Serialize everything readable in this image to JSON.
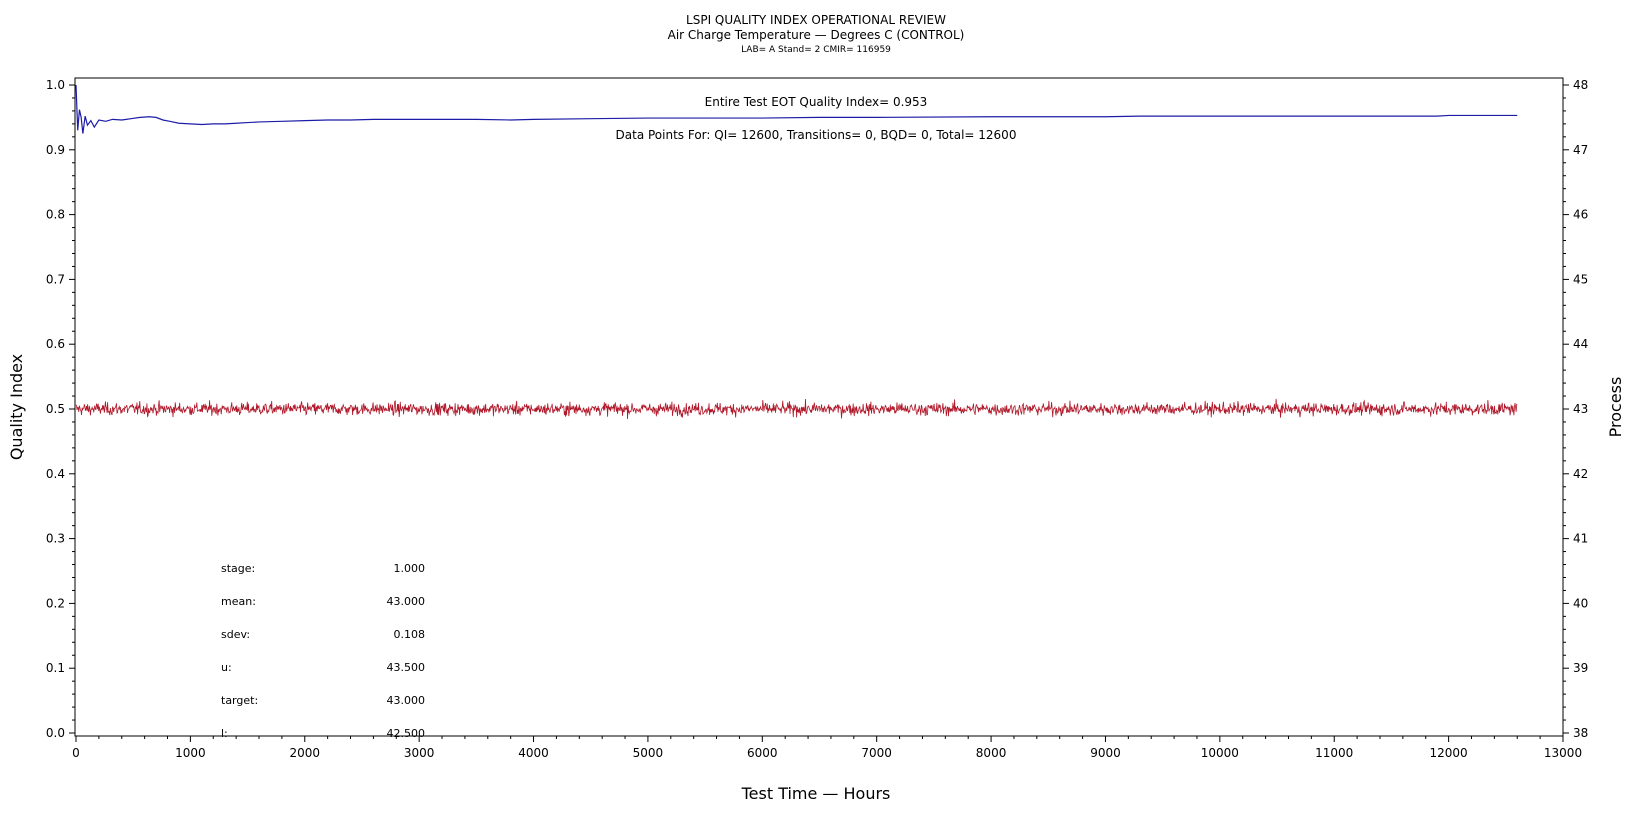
{
  "chart_data": {
    "type": "line",
    "title": "LSPI QUALITY INDEX OPERATIONAL REVIEW",
    "subtitle": "Air Charge Temperature — Degrees C (CONTROL)",
    "subtitle2": "LAB= A Stand= 2 CMIR= 116959",
    "xlabel": "Test Time — Hours",
    "ylabel": "Quality Index",
    "y2label": "Process",
    "xlim": [
      0,
      13000
    ],
    "ylim": [
      0,
      1.0
    ],
    "y2lim": [
      38,
      48
    ],
    "x_ticks": [
      "0",
      "1000",
      "2000",
      "3000",
      "4000",
      "5000",
      "6000",
      "7000",
      "8000",
      "9000",
      "10000",
      "11000",
      "12000",
      "13000"
    ],
    "y_ticks": [
      "0.0",
      "0.1",
      "0.2",
      "0.3",
      "0.4",
      "0.5",
      "0.6",
      "0.7",
      "0.8",
      "0.9",
      "1.0"
    ],
    "y2_ticks": [
      "38",
      "39",
      "40",
      "41",
      "42",
      "43",
      "44",
      "45",
      "46",
      "47",
      "48"
    ],
    "annotations": {
      "qi": "Entire Test EOT Quality Index=   0.953",
      "points": "Data Points For: QI= 12600, Transitions=      0, BQD=      0, Total= 12600"
    },
    "stats": [
      {
        "label": "stage:",
        "value": "1.000"
      },
      {
        "label": "mean:",
        "value": "43.000"
      },
      {
        "label": "sdev:",
        "value": "0.108"
      },
      {
        "label": "u:",
        "value": "43.500"
      },
      {
        "label": "target:",
        "value": "43.000"
      },
      {
        "label": "l:",
        "value": "42.500"
      }
    ],
    "series": [
      {
        "axis": "left",
        "color": "#1c1ca8",
        "x": [
          0,
          15,
          30,
          45,
          60,
          80,
          100,
          130,
          160,
          200,
          260,
          320,
          400,
          480,
          560,
          640,
          700,
          760,
          820,
          900,
          1000,
          1100,
          1200,
          1300,
          1400,
          1500,
          1600,
          1800,
          2000,
          2200,
          2400,
          2600,
          2800,
          3000,
          3200,
          3500,
          3800,
          4000,
          4500,
          5000,
          5500,
          6000,
          6500,
          7000,
          8000,
          9000,
          9300,
          10000,
          11000,
          11900,
          12000,
          12600
        ],
        "values": [
          1.0,
          0.93,
          0.962,
          0.95,
          0.925,
          0.952,
          0.938,
          0.945,
          0.935,
          0.946,
          0.944,
          0.947,
          0.946,
          0.948,
          0.95,
          0.951,
          0.95,
          0.946,
          0.944,
          0.941,
          0.94,
          0.939,
          0.94,
          0.94,
          0.941,
          0.942,
          0.943,
          0.944,
          0.945,
          0.946,
          0.946,
          0.947,
          0.947,
          0.947,
          0.947,
          0.947,
          0.946,
          0.947,
          0.948,
          0.949,
          0.949,
          0.949,
          0.95,
          0.95,
          0.951,
          0.951,
          0.952,
          0.952,
          0.952,
          0.952,
          0.953,
          0.953
        ]
      },
      {
        "axis": "right",
        "color": "#b0182a",
        "mean": 43.0,
        "sdev": 0.108,
        "min": 42.5,
        "max": 43.3,
        "x_range": [
          0,
          12600
        ]
      }
    ]
  },
  "colors": {
    "qi_line": "#1c1ca8",
    "process_line": "#b0182a",
    "axis": "#000000",
    "background": "#ffffff"
  }
}
